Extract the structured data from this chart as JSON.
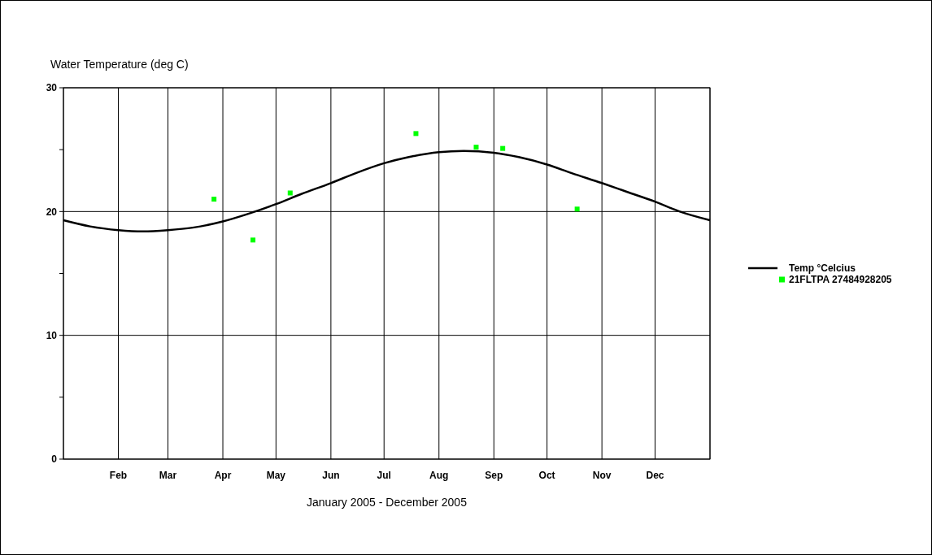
{
  "chart_data": {
    "type": "line",
    "ylabel": "Water Temperature (deg C)",
    "xlabel": "January 2005 - December 2005",
    "xlim": [
      "2005-01-01",
      "2006-01-01"
    ],
    "xticks": [
      {
        "value": "2005-01-01",
        "label": null
      },
      {
        "value": "2005-02-01",
        "label": "Feb"
      },
      {
        "value": "2005-03-01",
        "label": "Mar"
      },
      {
        "value": "2005-04-01",
        "label": "Apr"
      },
      {
        "value": "2005-05-01",
        "label": "May"
      },
      {
        "value": "2005-06-01",
        "label": "Jun"
      },
      {
        "value": "2005-07-01",
        "label": "Jul"
      },
      {
        "value": "2005-08-01",
        "label": "Aug"
      },
      {
        "value": "2005-09-01",
        "label": "Sep"
      },
      {
        "value": "2005-10-01",
        "label": "Oct"
      },
      {
        "value": "2005-11-01",
        "label": "Nov"
      },
      {
        "value": "2005-12-01",
        "label": "Dec"
      },
      {
        "value": "2006-01-01",
        "label": null
      }
    ],
    "ylim": [
      0,
      30
    ],
    "yticks": [
      0,
      {
        "value": 5,
        "label": null
      },
      10,
      {
        "value": 15,
        "label": null
      },
      20,
      {
        "value": 25,
        "label": null
      },
      30
    ],
    "grid": true,
    "legend": "right",
    "series": [
      {
        "name": "Temp °Celcius",
        "color": "#000000",
        "marker": "none",
        "line_style": "solid",
        "x": [
          "2005-01-01",
          "2005-01-16",
          "2005-02-01",
          "2005-02-15",
          "2005-03-01",
          "2005-03-15",
          "2005-04-01",
          "2005-04-15",
          "2005-05-01",
          "2005-05-15",
          "2005-06-01",
          "2005-06-15",
          "2005-07-01",
          "2005-07-15",
          "2005-08-01",
          "2005-08-15",
          "2005-09-01",
          "2005-09-15",
          "2005-10-01",
          "2005-10-15",
          "2005-11-01",
          "2005-11-15",
          "2005-12-01",
          "2005-12-15",
          "2006-01-01"
        ],
        "values": [
          19.3,
          18.8,
          18.5,
          18.4,
          18.5,
          18.7,
          19.2,
          19.8,
          20.6,
          21.4,
          22.3,
          23.1,
          23.9,
          24.4,
          24.8,
          24.9,
          24.75,
          24.4,
          23.8,
          23.1,
          22.3,
          21.6,
          20.8,
          20.0,
          19.3
        ]
      },
      {
        "name": "21FLTPA 27484928205",
        "type": "scatter",
        "color": "#00ff00",
        "marker": "square",
        "x": [
          "2005-03-27",
          "2005-04-18",
          "2005-05-09",
          "2005-07-19",
          "2005-08-22",
          "2005-09-06",
          "2005-10-18"
        ],
        "values": [
          21.0,
          17.7,
          21.5,
          26.3,
          25.2,
          25.1,
          20.2
        ]
      }
    ]
  }
}
